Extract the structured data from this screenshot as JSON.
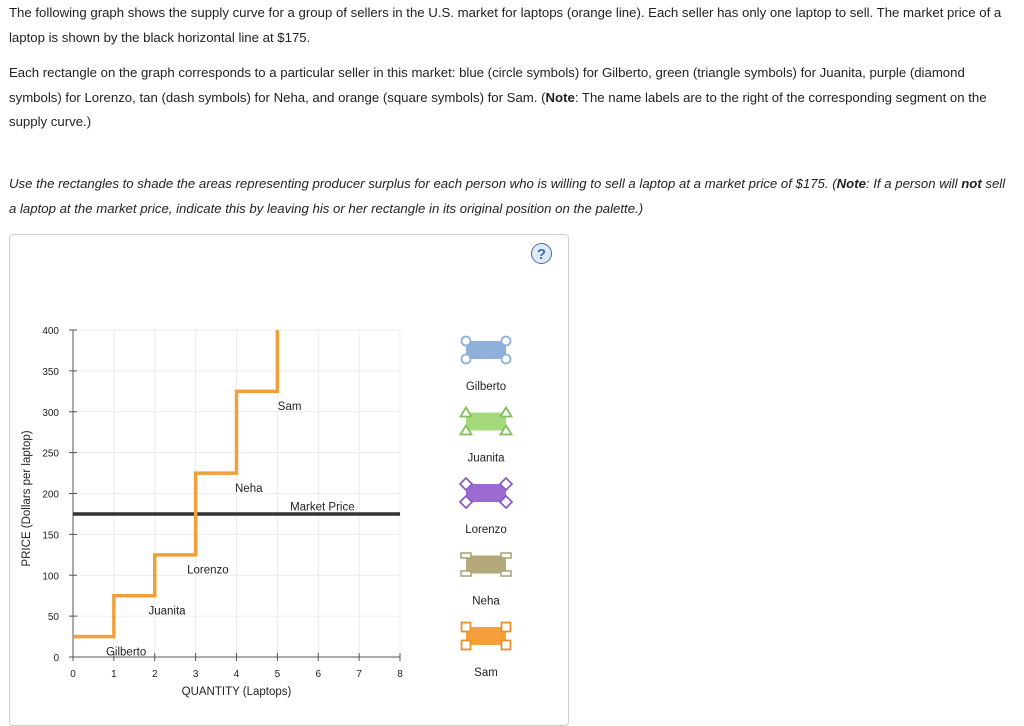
{
  "instructions": {
    "p1": "The following graph shows the supply curve for a group of sellers in the U.S. market for laptops (orange line). Each seller has only one laptop to sell. The market price of a laptop is shown by the black horizontal line at $175.",
    "p2_prefix": "Each rectangle on the graph corresponds to a particular seller in this market: blue (circle symbols) for Gilberto, green (triangle symbols) for Juanita, purple (diamond symbols) for Lorenzo, tan (dash symbols) for Neha, and orange (square symbols) for Sam. (",
    "p2_note_label": "Note",
    "p2_suffix": ": The name labels are to the right of the corresponding segment on the supply curve.)",
    "p3_prefix": "Use the rectangles to shade the areas representing producer surplus for each person who is willing to sell a laptop at a market price of $175. (",
    "p3_note_label": "Note",
    "p3_mid": ": If a person will ",
    "p3_not": "not",
    "p3_suffix": " sell a laptop at the market price, indicate this by leaving his or her rectangle in its original position on the palette.)"
  },
  "help_label": "?",
  "chart_data": {
    "type": "line",
    "xlabel": "QUANTITY (Laptops)",
    "ylabel": "PRICE (Dollars per laptop)",
    "xlim": [
      0,
      8
    ],
    "ylim": [
      0,
      400
    ],
    "xticks": [
      0,
      1,
      2,
      3,
      4,
      5,
      6,
      7,
      8
    ],
    "yticks": [
      0,
      50,
      100,
      150,
      200,
      250,
      300,
      350,
      400
    ],
    "grid": true,
    "supply_curve": {
      "color": "#f0a03a",
      "steps": [
        {
          "name": "Gilberto",
          "x0": 0,
          "x1": 1,
          "price": 25
        },
        {
          "name": "Juanita",
          "x0": 1,
          "x1": 2,
          "price": 75
        },
        {
          "name": "Lorenzo",
          "x0": 2,
          "x1": 3,
          "price": 125
        },
        {
          "name": "Neha",
          "x0": 3,
          "x1": 4,
          "price": 225
        },
        {
          "name": "Sam",
          "x0": 4,
          "x1": 5,
          "price": 325
        }
      ],
      "top_x": 5,
      "top_price": 400
    },
    "market_price": {
      "label": "Market Price",
      "value": 175,
      "x0": 0,
      "x1": 8,
      "color": "#333333"
    },
    "segment_labels": [
      {
        "text": "Gilberto",
        "x": 1.3,
        "y": 2
      },
      {
        "text": "Juanita",
        "x": 2.3,
        "y": 52
      },
      {
        "text": "Lorenzo",
        "x": 3.3,
        "y": 102
      },
      {
        "text": "Neha",
        "x": 4.3,
        "y": 202
      },
      {
        "text": "Sam",
        "x": 5.3,
        "y": 302
      },
      {
        "text": "Market Price",
        "x": 6.1,
        "y": 179
      }
    ]
  },
  "palette": [
    {
      "name": "Gilberto",
      "fill": "#8fb0d9",
      "stroke": "#8fb0d9",
      "symbol": "circle"
    },
    {
      "name": "Juanita",
      "fill": "#a6d97c",
      "stroke": "#7fc05a",
      "symbol": "triangle"
    },
    {
      "name": "Lorenzo",
      "fill": "#9b6bd3",
      "stroke": "#8a5cc7",
      "symbol": "diamond"
    },
    {
      "name": "Neha",
      "fill": "#b3a97a",
      "stroke": "#a89f70",
      "symbol": "dash"
    },
    {
      "name": "Sam",
      "fill": "#f5a03a",
      "stroke": "#e8902a",
      "symbol": "square"
    }
  ]
}
